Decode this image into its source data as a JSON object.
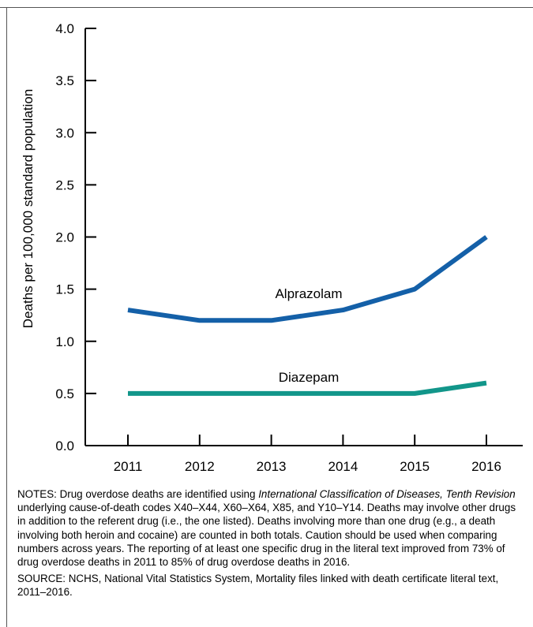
{
  "chart_data": {
    "type": "line",
    "ylabel": "Deaths per 100,000 standard population",
    "xlabel": "",
    "ylim": [
      0,
      4.0
    ],
    "x": [
      "2011",
      "2012",
      "2013",
      "2014",
      "2015",
      "2016"
    ],
    "y_ticks": [
      "0.0",
      "0.5",
      "1.0",
      "1.5",
      "2.0",
      "2.5",
      "3.0",
      "3.5",
      "4.0"
    ],
    "series": [
      {
        "name": "Alprazolam",
        "color": "#1460a8",
        "values": [
          1.3,
          1.2,
          1.2,
          1.3,
          1.5,
          2.0
        ]
      },
      {
        "name": "Diazepam",
        "color": "#12968a",
        "values": [
          0.5,
          0.5,
          0.5,
          0.5,
          0.5,
          0.6
        ]
      }
    ]
  },
  "notes": {
    "prefix": "NOTES: Drug overdose deaths are identified using ",
    "italic": "International Classification of Diseases, Tenth Revision",
    "suffix": " underlying cause-of-death codes X40–X44, X60–X64, X85, and Y10–Y14. Deaths may involve other drugs in addition to the referent drug (i.e., the one listed). Deaths involving more than one drug (e.g., a death involving both heroin and cocaine) are counted in both totals. Caution should be used when comparing numbers across years. The reporting of at least one specific drug in the literal text improved from 73% of drug overdose deaths in 2011 to 85% of drug overdose deaths in 2016."
  },
  "source": "SOURCE: NCHS, National Vital Statistics System, Mortality files linked with death certificate literal text, 2011–2016."
}
